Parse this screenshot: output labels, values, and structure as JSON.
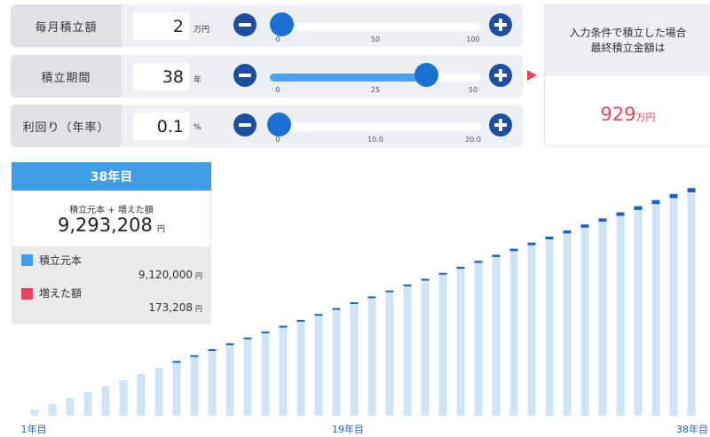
{
  "monthly": {
    "label": "毎月積立額",
    "value": "2",
    "unit": "万円",
    "slider": {
      "min": 0,
      "max": 100,
      "value": 2,
      "ticks": [
        "0",
        "50",
        "100"
      ]
    }
  },
  "period": {
    "label": "積立期間",
    "value": "38",
    "unit": "年",
    "slider": {
      "min": 0,
      "max": 50,
      "value": 38,
      "ticks": [
        "0",
        "25",
        "50"
      ]
    }
  },
  "rate": {
    "label": "利回り（年率）",
    "value": "0.1",
    "unit": "%",
    "slider": {
      "min": 0,
      "max": 20,
      "value": 0.1,
      "ticks": [
        "0",
        "10.0",
        "20.0"
      ]
    }
  },
  "result": {
    "line1": "入力条件で積立した場合",
    "line2": "最終積立金額は",
    "value": "929",
    "unit": "万円"
  },
  "summary": {
    "year_title": "38年目",
    "total_label": "積立元本 + 増えた額",
    "total_value": "9,293,208",
    "yen": "円",
    "principal_label": "積立元本",
    "principal_value": "9,120,000",
    "gain_label": "増えた額",
    "gain_value": "173,208"
  },
  "colors": {
    "principal": "#cfe6fa",
    "gain": "#1c63c0",
    "legend_principal": "#3f9ce8",
    "legend_gain": "#e8445a",
    "accent_red": "#e8445a"
  },
  "chart_data": {
    "type": "bar",
    "stacked": true,
    "x_tick_labels": [
      "1年目",
      "19年目",
      "38年目"
    ],
    "monthly_contribution_yen": 20000,
    "annual_rate_percent": 0.1,
    "years": 38,
    "series": [
      {
        "name": "積立元本",
        "values": [
          240000,
          480000,
          720000,
          960000,
          1200000,
          1440000,
          1680000,
          1920000,
          2160000,
          2400000,
          2640000,
          2880000,
          3120000,
          3360000,
          3600000,
          3840000,
          4080000,
          4320000,
          4560000,
          4800000,
          5040000,
          5280000,
          5520000,
          5760000,
          6000000,
          6240000,
          6480000,
          6720000,
          6960000,
          7200000,
          7440000,
          7680000,
          7920000,
          8160000,
          8400000,
          8640000,
          8880000,
          9120000
        ]
      },
      {
        "name": "増えた額",
        "values": [
          130,
          500,
          1100,
          2000,
          3200,
          4600,
          6200,
          8100,
          10300,
          12700,
          15400,
          18300,
          21400,
          24800,
          28500,
          32400,
          36600,
          41000,
          45700,
          50600,
          55800,
          61200,
          66900,
          72800,
          79000,
          85500,
          92200,
          99100,
          106300,
          113800,
          121500,
          129500,
          137700,
          146200,
          154900,
          163900,
          173100,
          173208
        ]
      }
    ],
    "ylim": [
      0,
      9300000
    ]
  }
}
